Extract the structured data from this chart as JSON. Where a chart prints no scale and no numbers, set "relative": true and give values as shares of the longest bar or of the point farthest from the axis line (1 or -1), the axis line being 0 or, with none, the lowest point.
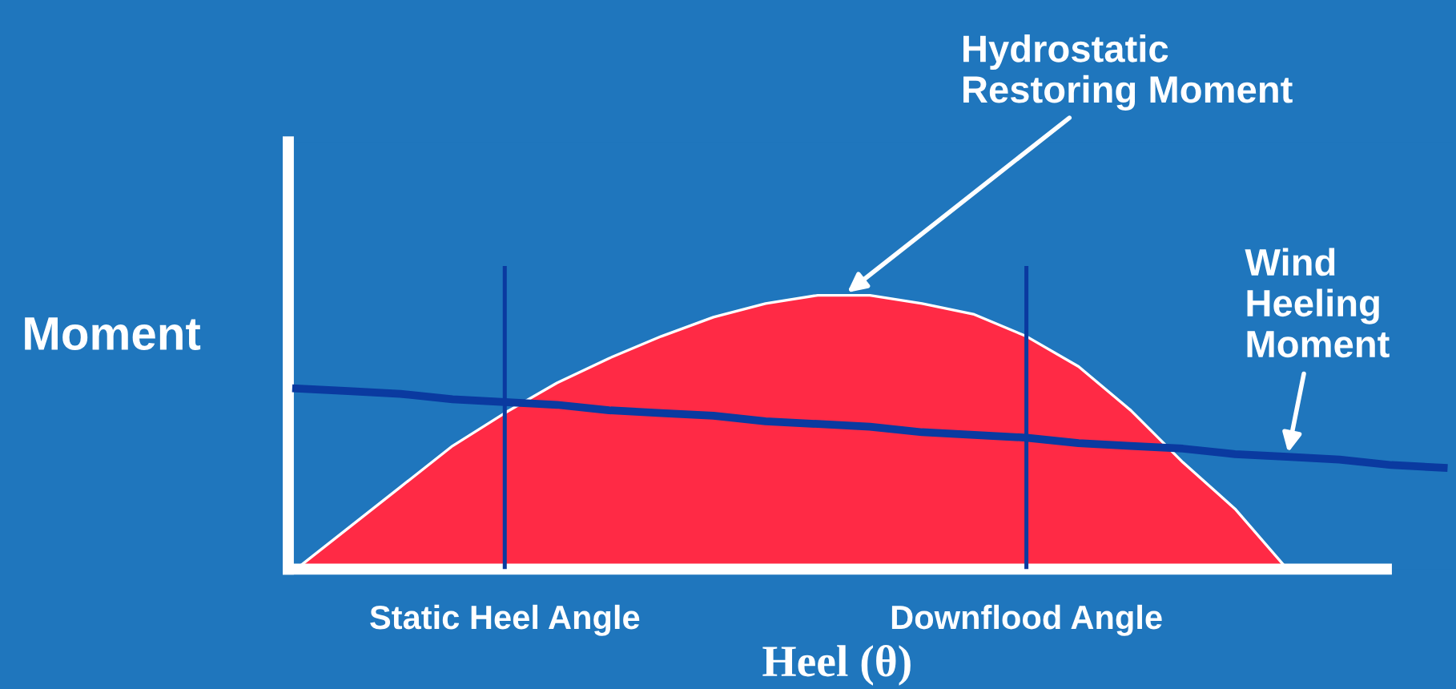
{
  "chart_data": {
    "type": "area",
    "relative": true,
    "xlabel": "Heel (θ)",
    "ylabel": "Moment",
    "categories": [
      null,
      null,
      null,
      null,
      "Static Heel Angle",
      null,
      null,
      null,
      null,
      null,
      null,
      null,
      null,
      null,
      "Downflood Angle",
      null,
      null,
      null,
      null,
      null,
      null,
      null,
      null
    ],
    "series": [
      {
        "name": "Hydrostatic\nRestoring Moment",
        "color": "#ff2a45",
        "values": [
          0,
          0.15,
          0.3,
          0.45,
          0.57,
          0.68,
          0.77,
          0.85,
          0.92,
          0.97,
          1.0,
          1.0,
          0.97,
          0.93,
          0.85,
          0.74,
          0.58,
          0.39,
          0.22,
          0,
          null,
          null,
          null
        ]
      },
      {
        "name": "Wind\nHeeling\nMoment",
        "type": "line",
        "color": "#0a3aa0",
        "values": [
          0.66,
          0.65,
          0.64,
          0.62,
          0.61,
          0.6,
          0.58,
          0.57,
          0.56,
          0.54,
          0.53,
          0.52,
          0.5,
          0.49,
          0.48,
          0.46,
          0.45,
          0.44,
          0.42,
          0.41,
          0.4,
          0.38,
          0.37
        ]
      }
    ],
    "ref_lines": [
      {
        "axis": "x",
        "value": "Static Heel Angle",
        "color": "#0a3aa0"
      },
      {
        "axis": "x",
        "value": "Downflood Angle",
        "color": "#0a3aa0"
      }
    ]
  }
}
